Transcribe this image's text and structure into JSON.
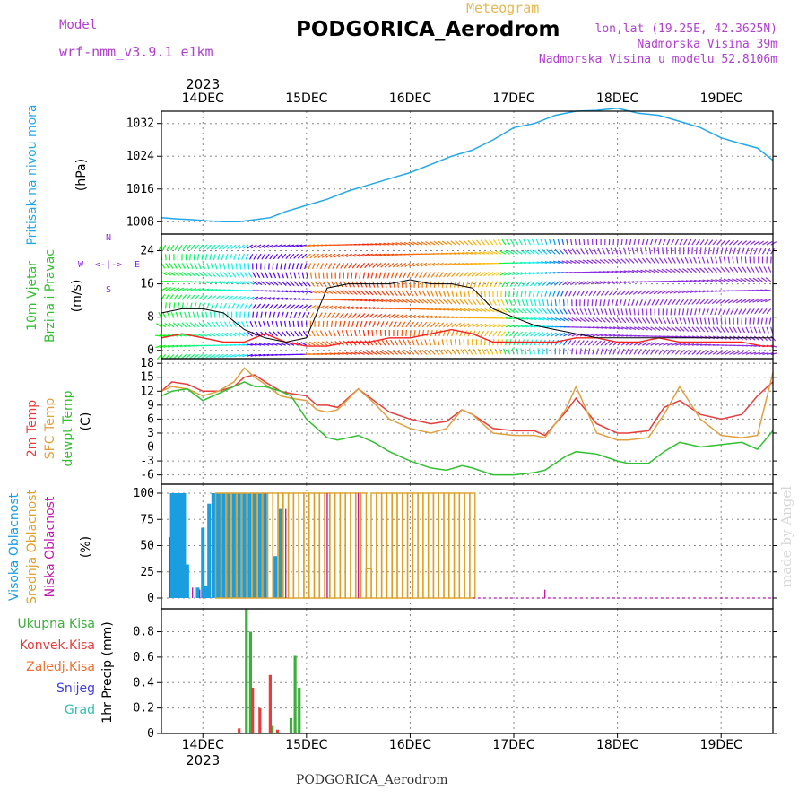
{
  "header": {
    "title": "PODGORICA_Aerodrom",
    "subtitle": "Meteogram",
    "model_label": "Model",
    "model_name": "wrf-nmm_v3.9.1 e1km",
    "coords": "lon,lat (19.25E, 42.3625N)",
    "elevation": "Nadmorska Visina 39m",
    "model_elevation": "Nadmorska Visina u modelu 52.8106m",
    "footer": "PODGORICA_Aerodrom",
    "credit": "made by Angel"
  },
  "colors": {
    "pressure": "#22a8e8",
    "t2m": "#e83c3c",
    "tsfc": "#e0a040",
    "dewpt": "#30c030",
    "cloud_high": "#1a9ee0",
    "cloud_mid": "#dca028",
    "cloud_low": "#c018b0",
    "precip_total": "#3cae3c",
    "precip_conv": "#e83c3c",
    "wind_speed_line": "#ff2020",
    "wind_dir_line": "#000000",
    "wind_barb_low": "#8a2be2"
  },
  "chart_data": [
    {
      "type": "line",
      "panel": "pressure",
      "ylabel_main": "Pritisak na nivou mora",
      "ylabel_unit": "(hPa)",
      "yticks": [
        "1008",
        "1016",
        "1024",
        "1032"
      ],
      "ylim": [
        1005,
        1035
      ],
      "xlim": [
        13.6,
        19.5
      ],
      "x": [
        13.6,
        13.75,
        13.9,
        14.05,
        14.2,
        14.35,
        14.5,
        14.65,
        14.8,
        15.0,
        15.2,
        15.4,
        15.6,
        15.8,
        16.0,
        16.2,
        16.4,
        16.6,
        16.8,
        17.0,
        17.2,
        17.4,
        17.6,
        17.8,
        18.0,
        18.2,
        18.4,
        18.6,
        18.8,
        19.0,
        19.2,
        19.35,
        19.5
      ],
      "y": [
        1009,
        1008.7,
        1008.5,
        1008.2,
        1008,
        1008,
        1008.5,
        1009,
        1010.5,
        1012,
        1013.5,
        1015.5,
        1017,
        1018.5,
        1020,
        1022,
        1024,
        1025.5,
        1028,
        1031,
        1032,
        1034,
        1035,
        1035.2,
        1035.7,
        1034.5,
        1034,
        1032.5,
        1031,
        1028.5,
        1027,
        1026,
        1023
      ],
      "grid": true
    },
    {
      "type": "wind",
      "panel": "wind",
      "ylabel_main": "10m Vjetar",
      "ylabel_sub": "Brzina i Pravac",
      "ylabel_unit": "(m/s)",
      "compass": [
        "N",
        "W",
        "<-|->",
        "E",
        "S"
      ],
      "yticks": [
        "0",
        "8",
        "16",
        "24"
      ],
      "ylim": [
        -2,
        28
      ],
      "x": [
        13.6,
        13.8,
        14.0,
        14.2,
        14.4,
        14.6,
        14.8,
        15.0,
        15.2,
        15.4,
        15.6,
        15.8,
        16.0,
        16.2,
        16.4,
        16.6,
        16.8,
        17.0,
        17.2,
        17.4,
        17.6,
        17.8,
        18.0,
        18.2,
        18.4,
        18.6,
        18.8,
        19.0,
        19.2,
        19.4,
        19.5
      ],
      "speed": [
        3,
        4,
        3,
        2,
        2,
        4,
        2,
        1,
        1,
        2,
        2,
        3,
        3,
        4,
        5,
        4,
        2,
        2,
        2,
        2,
        3,
        3,
        2,
        2,
        3,
        2,
        2,
        2,
        2,
        1,
        1
      ],
      "direction_line": [
        9,
        10,
        10,
        9,
        5,
        3,
        2,
        3,
        15,
        16,
        16,
        16,
        17,
        16,
        16,
        15,
        10,
        8,
        6,
        5,
        4,
        3,
        3,
        3,
        3,
        3,
        3,
        3,
        3,
        3,
        3
      ]
    },
    {
      "type": "line",
      "panel": "temperature",
      "ylabel_series": [
        "2m Temp",
        "SFC Temp",
        "dewpt Temp"
      ],
      "ylabel_unit": "(C)",
      "yticks": [
        "-6",
        "-3",
        "0",
        "3",
        "6",
        "9",
        "12",
        "15",
        "18"
      ],
      "ylim": [
        -8,
        19
      ],
      "x": [
        13.6,
        13.7,
        13.85,
        14.0,
        14.15,
        14.3,
        14.4,
        14.5,
        14.6,
        14.75,
        14.85,
        15.0,
        15.1,
        15.2,
        15.3,
        15.5,
        15.65,
        15.8,
        16.0,
        16.2,
        16.35,
        16.5,
        16.6,
        16.8,
        17.0,
        17.2,
        17.3,
        17.5,
        17.6,
        17.8,
        18.0,
        18.1,
        18.3,
        18.45,
        18.6,
        18.8,
        19.0,
        19.2,
        19.35,
        19.5
      ],
      "series": [
        {
          "name": "2m Temp",
          "values": [
            12,
            14,
            13.5,
            12,
            12,
            13,
            15,
            15.5,
            14,
            12,
            11.5,
            11,
            9,
            9,
            8.5,
            12.5,
            10,
            7.5,
            6,
            5,
            5.5,
            8,
            7,
            4,
            3.5,
            3.5,
            2.5,
            7.5,
            10.5,
            5,
            3,
            3,
            3.5,
            8.5,
            10,
            7,
            6,
            7,
            11,
            14
          ]
        },
        {
          "name": "SFC Temp",
          "values": [
            12,
            13,
            12.5,
            11,
            12,
            14,
            17,
            15,
            13.5,
            11,
            10.5,
            10,
            8,
            7.5,
            8,
            12.5,
            9.5,
            6,
            4,
            3,
            4,
            8,
            7,
            3,
            2.5,
            2.5,
            2,
            8,
            13,
            3,
            1.5,
            1.5,
            2,
            7,
            13,
            6,
            2.5,
            2,
            2.5,
            16
          ]
        },
        {
          "name": "dewpt Temp",
          "values": [
            11,
            12,
            12.5,
            10,
            11.5,
            13,
            14,
            13,
            13,
            12,
            11,
            6,
            4,
            2,
            1.5,
            2.5,
            1,
            -1,
            -3,
            -4.5,
            -5,
            -4,
            -4.5,
            -6,
            -6,
            -5.5,
            -5,
            -2,
            -1,
            -1.5,
            -3,
            -3.5,
            -3.5,
            -1,
            1,
            0,
            0.5,
            1,
            -0.5,
            3.5
          ]
        }
      ]
    },
    {
      "type": "bar",
      "panel": "clouds",
      "ylabel_series": [
        "Visoka Oblacnost",
        "Srednja Oblacnost",
        "Niska Oblacnost"
      ],
      "ylabel_unit": "(%)",
      "yticks": [
        "0",
        "25",
        "50",
        "75",
        "100"
      ],
      "ylim": [
        0,
        100
      ],
      "series": [
        {
          "name": "Visoka Oblacnost",
          "x": [
            13.7,
            13.73,
            13.76,
            13.79,
            13.82,
            13.85,
            13.95,
            14.0,
            14.03,
            14.06,
            14.1,
            14.13,
            14.16,
            14.2,
            14.25,
            14.3,
            14.35,
            14.4,
            14.45,
            14.5,
            14.55,
            14.6,
            14.7,
            14.75
          ],
          "values": [
            100,
            100,
            100,
            100,
            100,
            32,
            10,
            67,
            12,
            90,
            100,
            100,
            100,
            100,
            100,
            100,
            100,
            100,
            100,
            100,
            100,
            100,
            40,
            85
          ]
        },
        {
          "name": "Srednja Oblacnost",
          "x": [
            14.15,
            14.2,
            14.25,
            14.3,
            14.35,
            14.4,
            14.45,
            14.5,
            14.55,
            14.6,
            14.65,
            14.7,
            14.75,
            14.8,
            14.85,
            14.9,
            14.95,
            15.0,
            15.05,
            15.1,
            15.15,
            15.2,
            15.25,
            15.3,
            15.35,
            15.4,
            15.45,
            15.5,
            15.55,
            15.6,
            15.65,
            15.7,
            15.75,
            15.8,
            15.85,
            15.9,
            15.95,
            16.0,
            16.05,
            16.1,
            16.15,
            16.2,
            16.25,
            16.3,
            16.35,
            16.4,
            16.45,
            16.5,
            16.55,
            16.6
          ],
          "values": [
            100,
            100,
            100,
            100,
            100,
            100,
            100,
            100,
            100,
            100,
            100,
            100,
            100,
            100,
            100,
            100,
            100,
            100,
            100,
            100,
            100,
            100,
            100,
            100,
            100,
            100,
            100,
            100,
            100,
            28,
            100,
            100,
            100,
            100,
            100,
            100,
            100,
            100,
            100,
            100,
            100,
            100,
            100,
            100,
            100,
            100,
            100,
            100,
            100,
            100
          ]
        },
        {
          "name": "Niska Oblacnost",
          "x": [
            13.68,
            13.9,
            13.97,
            14.6,
            14.8,
            15.2,
            15.5,
            17.3
          ],
          "values": [
            58,
            10,
            8,
            100,
            85,
            100,
            100,
            8
          ]
        }
      ]
    },
    {
      "type": "bar",
      "panel": "precip",
      "ylabel_series": [
        "Ukupna Kisa",
        "Konvek.Kisa",
        "Zaledj.Kisa",
        "Snijeg",
        "Grad"
      ],
      "ylabel_unit": "1hr Precip (mm)",
      "yticks": [
        "0",
        "0.2",
        "0.4",
        "0.6",
        "0.8"
      ],
      "ylim": [
        0,
        0.98
      ],
      "xlabels": [
        "14DEC",
        "15DEC",
        "16DEC",
        "17DEC",
        "18DEC",
        "19DEC"
      ],
      "xlabel_year": "2023",
      "series": [
        {
          "name": "Ukupna Kisa",
          "x": [
            14.42,
            14.46,
            14.67,
            14.85,
            14.89,
            14.93
          ],
          "values": [
            0.98,
            0.8,
            0.06,
            0.12,
            0.61,
            0.36
          ]
        },
        {
          "name": "Konvek.Kisa",
          "x": [
            14.35,
            14.48,
            14.55,
            14.65,
            14.72
          ],
          "values": [
            0.04,
            0.36,
            0.2,
            0.46,
            0.03
          ]
        }
      ]
    }
  ]
}
